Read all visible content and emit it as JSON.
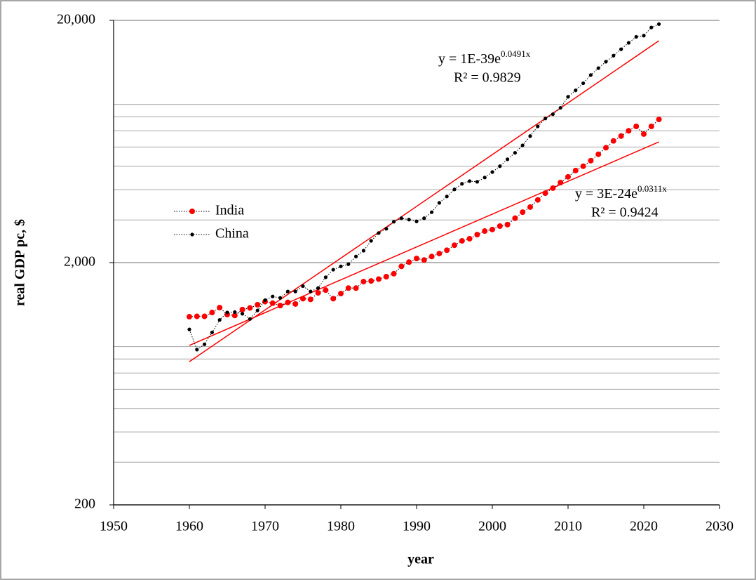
{
  "chart_data": {
    "type": "line",
    "x_label": "year",
    "y_label": "real GDP pc, $",
    "x": [
      1960,
      1961,
      1962,
      1963,
      1964,
      1965,
      1966,
      1967,
      1968,
      1969,
      1970,
      1971,
      1972,
      1973,
      1974,
      1975,
      1976,
      1977,
      1978,
      1979,
      1980,
      1981,
      1982,
      1983,
      1984,
      1985,
      1986,
      1987,
      1988,
      1989,
      1990,
      1991,
      1992,
      1993,
      1994,
      1995,
      1996,
      1997,
      1998,
      1999,
      2000,
      2001,
      2002,
      2003,
      2004,
      2005,
      2006,
      2007,
      2008,
      2009,
      2010,
      2011,
      2012,
      2013,
      2014,
      2015,
      2016,
      2017,
      2018,
      2019,
      2020,
      2021,
      2022
    ],
    "series": [
      {
        "name": "India",
        "color": "#ff0000",
        "values": [
          1196,
          1200,
          1200,
          1245,
          1304,
          1220,
          1210,
          1280,
          1300,
          1340,
          1380,
          1360,
          1330,
          1370,
          1350,
          1420,
          1410,
          1500,
          1540,
          1420,
          1490,
          1570,
          1570,
          1670,
          1680,
          1710,
          1750,
          1800,
          1930,
          2010,
          2080,
          2050,
          2120,
          2180,
          2250,
          2360,
          2460,
          2510,
          2610,
          2700,
          2740,
          2830,
          2870,
          3050,
          3230,
          3390,
          3630,
          3870,
          4060,
          4280,
          4520,
          4800,
          5000,
          5270,
          5600,
          5960,
          6360,
          6660,
          7000,
          7300,
          6790,
          7300,
          7800
        ]
      },
      {
        "name": "China",
        "color": "#000000",
        "values": [
          1060,
          875,
          920,
          1030,
          1160,
          1245,
          1250,
          1230,
          1170,
          1270,
          1400,
          1450,
          1430,
          1520,
          1520,
          1600,
          1520,
          1570,
          1740,
          1870,
          1930,
          1970,
          2120,
          2240,
          2460,
          2650,
          2760,
          2950,
          3050,
          3010,
          2960,
          3050,
          3230,
          3530,
          3750,
          4010,
          4230,
          4340,
          4310,
          4490,
          4730,
          5000,
          5340,
          5680,
          6100,
          6660,
          7300,
          7870,
          8200,
          8710,
          9670,
          10280,
          11000,
          11900,
          12700,
          13500,
          14300,
          15200,
          16150,
          17100,
          17300,
          18700,
          19300
        ]
      }
    ],
    "trendlines": [
      {
        "color": "#ff0000",
        "x": [
          1960,
          2022
        ],
        "values": [
          780,
          16480
        ],
        "equation": "y = 1E-39e",
        "equation_exponent": "0.0491x",
        "r2": "R² = 0.9829"
      },
      {
        "color": "#ff0000",
        "x": [
          1960,
          2022
        ],
        "values": [
          910,
          6300
        ],
        "equation": "y = 3E-24e",
        "equation_exponent": "0.0311x",
        "r2": "R² = 0.9424"
      }
    ],
    "xlim": [
      1950,
      2030
    ],
    "xticks": [
      1950,
      1960,
      1970,
      1980,
      1990,
      2000,
      2010,
      2020,
      2030
    ],
    "ylim": [
      200,
      20000
    ],
    "log_y": true,
    "yticks": [
      200,
      {
        "value": 2000,
        "label": "2,000"
      },
      {
        "value": 20000,
        "label": "20,000"
      }
    ],
    "minor_yticks": [
      300,
      400,
      500,
      600,
      700,
      800,
      900,
      3000,
      4000,
      5000,
      6000,
      7000,
      8000,
      9000
    ],
    "grid": true,
    "legend": "left"
  }
}
